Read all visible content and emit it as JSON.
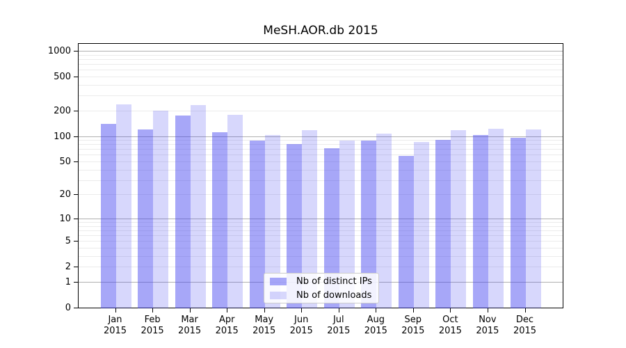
{
  "title": "MeSH.AOR.db 2015",
  "chart_data": {
    "type": "bar",
    "title": "MeSH.AOR.db 2015",
    "categories": [
      "Jan",
      "Feb",
      "Mar",
      "Apr",
      "May",
      "Jun",
      "Jul",
      "Aug",
      "Sep",
      "Oct",
      "Nov",
      "Dec"
    ],
    "category_year": "2015",
    "series": [
      {
        "name": "Nb of distinct IPs",
        "color": "rgba(64,64,240,0.46)",
        "values": [
          140,
          120,
          175,
          110,
          88,
          80,
          72,
          88,
          58,
          91,
          102,
          95
        ]
      },
      {
        "name": "Nb of downloads",
        "color": "rgba(64,64,240,0.21)",
        "values": [
          235,
          200,
          230,
          178,
          103,
          118,
          88,
          106,
          85,
          118,
          122,
          120
        ]
      }
    ],
    "xlabel": "",
    "ylabel": "",
    "y_scale": "log-like (log10(1+x))",
    "y_ticks": [
      0,
      1,
      2,
      5,
      10,
      20,
      50,
      100,
      200,
      500,
      1000
    ],
    "y_major_gridlines": [
      1,
      10,
      100,
      1000
    ],
    "ylim": [
      0,
      1200
    ],
    "grid": "on",
    "legend_position": "bottom-center"
  },
  "colors": {
    "bar_dark": "rgba(64,64,240,0.46)",
    "bar_light": "rgba(64,64,240,0.21)",
    "major_grid": "#b0b0b0",
    "minor_grid": "#ebebeb",
    "frame": "#000000",
    "legend_border": "#cccccc"
  }
}
